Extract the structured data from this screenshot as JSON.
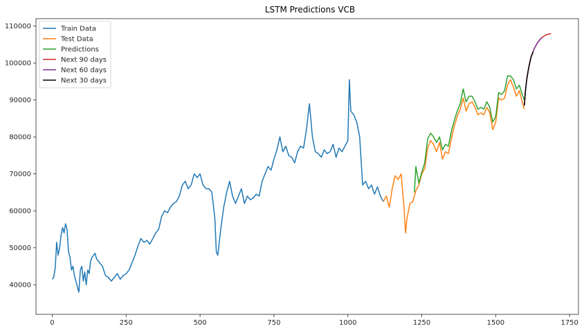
{
  "chart_data": {
    "type": "line",
    "title": "LSTM Predictions VCB",
    "xlabel": "",
    "ylabel": "",
    "xlim": [
      -55,
      1780
    ],
    "ylim": [
      32000,
      112000
    ],
    "x_ticks": [
      0,
      250,
      500,
      750,
      1000,
      1250,
      1500,
      1750
    ],
    "x_tick_labels": [
      "0",
      "250",
      "500",
      "750",
      "1000",
      "1250",
      "1500",
      "1750"
    ],
    "y_ticks": [
      40000,
      50000,
      60000,
      70000,
      80000,
      90000,
      100000,
      110000
    ],
    "y_tick_labels": [
      "40000",
      "50000",
      "60000",
      "70000",
      "80000",
      "90000",
      "100000",
      "110000"
    ],
    "grid": false,
    "legend_position": "top-left",
    "series": [
      {
        "name": "Train Data",
        "color": "#1f77b4",
        "x": [
          0,
          5,
          10,
          15,
          20,
          25,
          30,
          35,
          40,
          45,
          50,
          55,
          60,
          65,
          70,
          75,
          80,
          85,
          90,
          95,
          100,
          105,
          110,
          115,
          120,
          125,
          130,
          135,
          140,
          145,
          150,
          160,
          170,
          180,
          190,
          200,
          210,
          220,
          230,
          240,
          250,
          260,
          270,
          280,
          290,
          300,
          310,
          320,
          330,
          340,
          350,
          360,
          370,
          380,
          390,
          400,
          410,
          420,
          430,
          440,
          450,
          460,
          470,
          480,
          490,
          500,
          510,
          520,
          530,
          540,
          550,
          555,
          560,
          570,
          580,
          590,
          600,
          610,
          620,
          630,
          640,
          650,
          660,
          670,
          680,
          690,
          700,
          710,
          720,
          730,
          740,
          750,
          760,
          770,
          780,
          790,
          800,
          810,
          820,
          830,
          840,
          850,
          860,
          870,
          880,
          890,
          900,
          910,
          920,
          930,
          940,
          950,
          960,
          970,
          980,
          990,
          1000,
          1005,
          1010,
          1020,
          1030,
          1040,
          1050,
          1060,
          1070,
          1080,
          1090,
          1100,
          1110,
          1120
        ],
        "y": [
          41500,
          42000,
          44500,
          51500,
          48000,
          50000,
          53500,
          55500,
          54000,
          56500,
          55000,
          49000,
          47500,
          44000,
          45000,
          42500,
          41000,
          39500,
          38000,
          44000,
          45000,
          41000,
          43500,
          40000,
          44000,
          43000,
          46500,
          47500,
          48000,
          48500,
          47000,
          46000,
          45000,
          42500,
          42000,
          41000,
          42000,
          43000,
          41500,
          42500,
          43000,
          44000,
          46000,
          48000,
          50500,
          52500,
          51500,
          52000,
          51000,
          52500,
          54000,
          55000,
          58500,
          60000,
          59500,
          61000,
          62000,
          62500,
          64000,
          67000,
          68000,
          66000,
          67000,
          70000,
          69000,
          70000,
          67000,
          66000,
          66000,
          65000,
          58000,
          49000,
          48000,
          55000,
          61000,
          65000,
          68000,
          64000,
          62000,
          64000,
          66000,
          62000,
          64000,
          63000,
          63500,
          64500,
          64000,
          68000,
          70000,
          72000,
          71000,
          74000,
          76500,
          80000,
          76000,
          77500,
          75000,
          74500,
          73000,
          76000,
          77500,
          77000,
          82000,
          89000,
          80000,
          76000,
          75500,
          74500,
          76500,
          75500,
          76000,
          78000,
          74500,
          77000,
          76000,
          77500,
          79000,
          95500,
          87000,
          86000,
          84000,
          80000,
          67000,
          68000,
          66000,
          67000,
          64500,
          66500,
          64000,
          62500
        ]
      },
      {
        "name": "Test Data",
        "color": "#ff7f0e",
        "x": [
          1120,
          1130,
          1140,
          1150,
          1160,
          1170,
          1180,
          1190,
          1195,
          1200,
          1210,
          1220,
          1230,
          1240,
          1250,
          1260,
          1270,
          1280,
          1290,
          1300,
          1310,
          1320,
          1330,
          1340,
          1350,
          1360,
          1370,
          1380,
          1390,
          1400,
          1410,
          1420,
          1430,
          1440,
          1450,
          1460,
          1470,
          1480,
          1490,
          1500,
          1510,
          1520,
          1530,
          1540,
          1550,
          1560,
          1570,
          1580,
          1590,
          1597
        ],
        "y": [
          62500,
          64000,
          61000,
          66000,
          69500,
          68500,
          70000,
          61000,
          54000,
          58000,
          62000,
          62500,
          65500,
          67000,
          70000,
          71500,
          77000,
          79000,
          78000,
          76000,
          78500,
          74000,
          76000,
          75500,
          79500,
          83000,
          85500,
          87500,
          90500,
          87000,
          89000,
          89500,
          88000,
          86000,
          86500,
          86000,
          88000,
          86500,
          82000,
          84000,
          90500,
          90000,
          90500,
          94000,
          95500,
          93500,
          91000,
          92500,
          89500,
          87500
        ]
      },
      {
        "name": "Predictions",
        "color": "#2ca02c",
        "x": [
          1225,
          1230,
          1240,
          1250,
          1260,
          1270,
          1280,
          1290,
          1300,
          1310,
          1320,
          1330,
          1340,
          1350,
          1360,
          1370,
          1380,
          1390,
          1400,
          1410,
          1420,
          1430,
          1440,
          1450,
          1460,
          1470,
          1480,
          1490,
          1500,
          1510,
          1520,
          1530,
          1540,
          1550,
          1560,
          1570,
          1580,
          1590,
          1597
        ],
        "y": [
          65000,
          72000,
          67500,
          70500,
          73000,
          79500,
          81000,
          80000,
          78500,
          80000,
          76500,
          78000,
          77500,
          81500,
          84500,
          87000,
          89000,
          93000,
          89500,
          91000,
          91000,
          89500,
          87500,
          88000,
          87500,
          89500,
          88000,
          84000,
          85500,
          92000,
          91500,
          92500,
          96500,
          96500,
          95500,
          93000,
          94000,
          91500,
          90000
        ]
      },
      {
        "name": "Next 90 days",
        "color": "#d62728",
        "x": [
          1597,
          1600,
          1605,
          1610,
          1615,
          1620,
          1630,
          1640,
          1650,
          1660,
          1670,
          1680,
          1687
        ],
        "y": [
          88500,
          92000,
          95500,
          98000,
          100000,
          101700,
          103800,
          105300,
          106400,
          107100,
          107600,
          107850,
          107950
        ]
      },
      {
        "name": "Next 60 days",
        "color": "#7b2c8f",
        "x": [
          1597,
          1600,
          1605,
          1610,
          1615,
          1620,
          1630,
          1640,
          1650,
          1657
        ],
        "y": [
          88500,
          92000,
          95500,
          98000,
          100000,
          101700,
          103800,
          105300,
          106400,
          106900
        ]
      },
      {
        "name": "Next 30 days",
        "color": "#000000",
        "x": [
          1597,
          1600,
          1605,
          1610,
          1615,
          1620,
          1627
        ],
        "y": [
          88500,
          92000,
          95500,
          98000,
          100000,
          101700,
          103000
        ]
      }
    ]
  }
}
